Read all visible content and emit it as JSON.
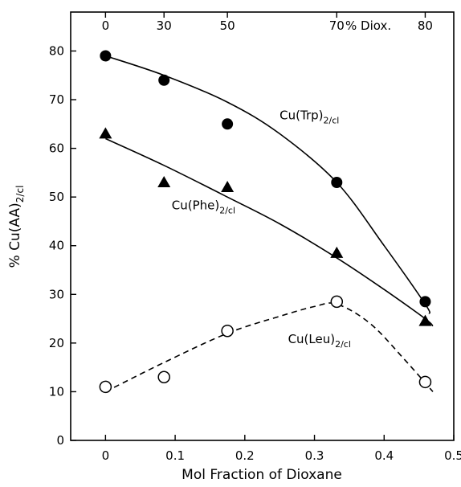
{
  "chart_data": {
    "type": "scatter",
    "title": "",
    "xlabel": "Mol Fraction of Dioxane",
    "ylabel": {
      "main": "% Cu(AA)",
      "sub": "2/cl"
    },
    "xlim": [
      -0.05,
      0.5
    ],
    "ylim": [
      0,
      88
    ],
    "x_ticks": [
      0,
      0.1,
      0.2,
      0.3,
      0.4,
      0.5
    ],
    "x_tick_labels": [
      "0",
      "0.1",
      "0.2",
      "0.3",
      "0.4",
      "0.5"
    ],
    "y_ticks": [
      0,
      10,
      20,
      30,
      40,
      50,
      60,
      70,
      80
    ],
    "y_tick_labels": [
      "0",
      "10",
      "20",
      "30",
      "40",
      "50",
      "60",
      "70",
      "80"
    ],
    "top_axis": {
      "label": "% Diox.",
      "ticks": [
        {
          "x": 0,
          "label": "0"
        },
        {
          "x": 0.084,
          "label": "30"
        },
        {
          "x": 0.175,
          "label": "50"
        },
        {
          "x": 0.332,
          "label": "70"
        },
        {
          "x": 0.459,
          "label": "80"
        }
      ]
    },
    "grid": false,
    "series": [
      {
        "name": "Cu(Trp)",
        "name_sub": "2/cl",
        "marker": "filled-circle",
        "line": "solid",
        "color": "#000000",
        "x": [
          0,
          0.084,
          0.175,
          0.332,
          0.459
        ],
        "y": [
          79,
          74,
          65,
          53,
          28.5
        ],
        "fit_x": [
          0,
          0.084,
          0.175,
          0.25,
          0.332,
          0.4,
          0.459,
          0.465
        ],
        "fit_y": [
          79,
          75,
          69.5,
          63,
          53,
          40,
          28,
          26
        ]
      },
      {
        "name": "Cu(Phe)",
        "name_sub": "2/cl",
        "marker": "filled-triangle",
        "line": "solid",
        "color": "#000000",
        "x": [
          0,
          0.084,
          0.175,
          0.332,
          0.459
        ],
        "y": [
          63,
          53,
          52,
          38.5,
          24.5
        ],
        "fit_x": [
          0,
          0.084,
          0.175,
          0.25,
          0.332,
          0.4,
          0.459,
          0.47
        ],
        "fit_y": [
          62,
          56.5,
          50,
          44.5,
          37.5,
          31,
          25,
          23.5
        ]
      },
      {
        "name": "Cu(Leu)",
        "name_sub": "2/cl",
        "marker": "open-circle",
        "line": "dashed",
        "color": "#000000",
        "x": [
          0,
          0.084,
          0.175,
          0.332,
          0.459
        ],
        "y": [
          11,
          13,
          22.5,
          28.5,
          12
        ],
        "fit_x": [
          0,
          0.084,
          0.175,
          0.25,
          0.3,
          0.332,
          0.38,
          0.43,
          0.47
        ],
        "fit_y": [
          10,
          16,
          22,
          25.5,
          27.5,
          28,
          24,
          16.5,
          10
        ]
      }
    ],
    "annotations": [
      {
        "text": "Cu(Trp)",
        "sub": "2/cl",
        "x": 0.25,
        "y": 66
      },
      {
        "text": "Cu(Phe)",
        "sub": "2/cl",
        "x": 0.095,
        "y": 47.5
      },
      {
        "text": "Cu(Leu)",
        "sub": "2/cl",
        "x": 0.262,
        "y": 20
      }
    ]
  }
}
